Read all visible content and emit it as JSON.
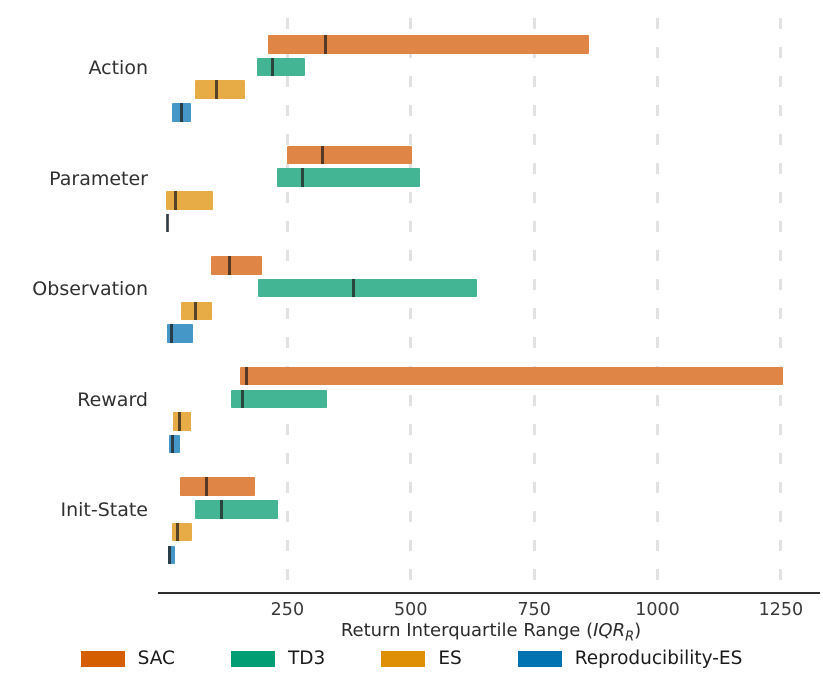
{
  "figure": {
    "xlabel_prefix": "Return Interquartile Range (",
    "xlabel_italic": "IQR",
    "xlabel_sub": "R",
    "xlabel_suffix": ")"
  },
  "colors": {
    "gridline": "#e2e2e2",
    "axis_spine": "#2e2e2e",
    "median_line": "#3d3530",
    "text": "#262626"
  },
  "chart_data": {
    "type": "bar",
    "subtype": "horizontal-range-bars-with-median",
    "title": "",
    "xlabel": "Return Interquartile Range (IQR_R)",
    "ylabel": "",
    "categories": [
      "Action",
      "Parameter",
      "Observation",
      "Reward",
      "Init-State"
    ],
    "x_ticks": [
      250,
      500,
      750,
      1000,
      1250
    ],
    "xlim": [
      0,
      1320
    ],
    "grid": "vertical-dashed",
    "legend_position": "bottom",
    "series": [
      {
        "name": "SAC",
        "legend_color": "#d55e00",
        "bar_color": "#df8545",
        "ranges_min_median_max": [
          [
            210,
            328,
            862
          ],
          [
            250,
            322,
            503
          ],
          [
            95,
            132,
            199
          ],
          [
            154,
            167,
            1255
          ],
          [
            33,
            87,
            185
          ]
        ]
      },
      {
        "name": "TD3",
        "legend_color": "#029e73",
        "bar_color": "#44b594",
        "ranges_min_median_max": [
          [
            188,
            220,
            286
          ],
          [
            228,
            281,
            519
          ],
          [
            191,
            383,
            635
          ],
          [
            135,
            160,
            331
          ],
          [
            62,
            117,
            232
          ]
        ]
      },
      {
        "name": "ES",
        "legend_color": "#de8f05",
        "bar_color": "#e7ac45",
        "ranges_min_median_max": [
          [
            63,
            107,
            165
          ],
          [
            4,
            23,
            99
          ],
          [
            35,
            63,
            98
          ],
          [
            18,
            32,
            55
          ],
          [
            16,
            27,
            56
          ]
        ]
      },
      {
        "name": "Reproducibility-ES",
        "legend_color": "#0173b2",
        "bar_color": "#4497c6",
        "ranges_min_median_max": [
          [
            17,
            36,
            55
          ],
          [
            6,
            7,
            8
          ],
          [
            7,
            16,
            59
          ],
          [
            11,
            17,
            32
          ],
          [
            8,
            12,
            22
          ]
        ]
      }
    ]
  }
}
